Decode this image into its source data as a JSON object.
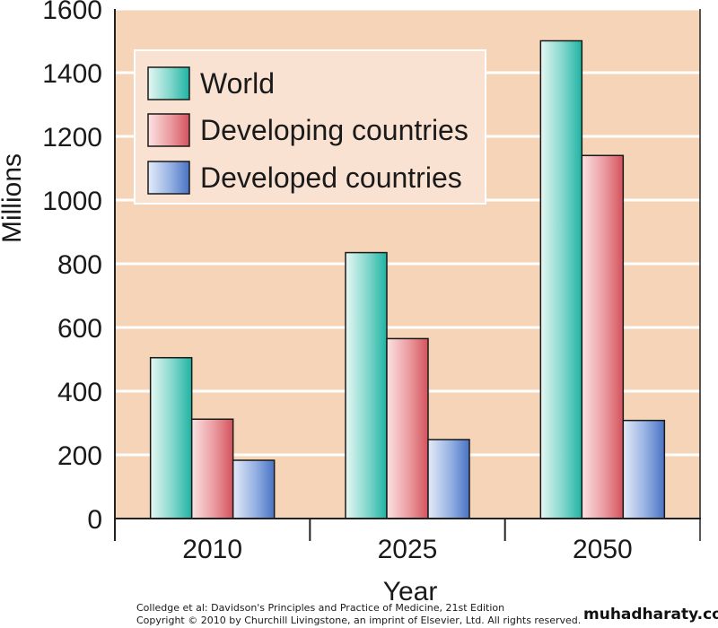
{
  "chart_data": {
    "type": "bar",
    "title": "",
    "xlabel": "Year",
    "ylabel": "Millions",
    "categories": [
      "2010",
      "2025",
      "2050"
    ],
    "ylim": [
      0,
      1600
    ],
    "yticks": [
      0,
      200,
      400,
      600,
      800,
      1000,
      1200,
      1400,
      1600
    ],
    "ytick_labels": [
      "0",
      "200",
      "400",
      "600",
      "800",
      "1000",
      "1200",
      "1400",
      "1600"
    ],
    "grid": true,
    "legend_position": "top-left",
    "series": [
      {
        "name": "World",
        "values": [
          505,
          835,
          1500
        ]
      },
      {
        "name": "Developing countries",
        "values": [
          312,
          565,
          1140
        ]
      },
      {
        "name": "Developed countries",
        "values": [
          183,
          248,
          308
        ]
      }
    ],
    "colors": {
      "plot_background": "#f5d4b7",
      "gridline": "#ffffff",
      "world": "#35c3b3",
      "developing": "#de6a72",
      "developed": "#5c86cf"
    }
  },
  "caption": {
    "line1": "Colledge et al: Davidson's Principles and Practice of Medicine, 21st Edition",
    "line2": "Copyright © 2010 by Churchill Livingstone, an imprint of Elsevier, Ltd. All rights reserved."
  },
  "watermark": "muhadharaty.com"
}
